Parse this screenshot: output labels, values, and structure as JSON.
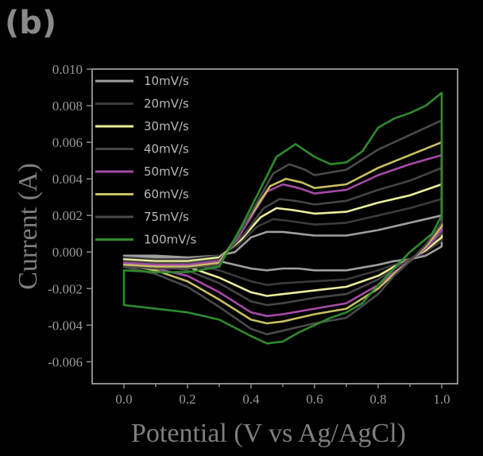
{
  "panel_label": "(b)",
  "chart_data": {
    "type": "line",
    "title": "",
    "xlabel": "Potential (V vs Ag/AgCl)",
    "ylabel": "Current (A)",
    "xlim": [
      -0.1,
      1.05
    ],
    "ylim": [
      -0.0072,
      0.01
    ],
    "xticks": [
      0.0,
      0.2,
      0.4,
      0.6,
      0.8,
      1.0
    ],
    "xtick_labels": [
      "0.0",
      "0.2",
      "0.4",
      "0.6",
      "0.8",
      "1.0"
    ],
    "yticks": [
      0.01,
      0.008,
      0.006,
      0.004,
      0.002,
      0.0,
      -0.002,
      -0.004,
      -0.006
    ],
    "ytick_labels": [
      "0.010",
      "0.008",
      "0.006",
      "0.004",
      "0.002",
      "0.000",
      "-0.002",
      "-0.004",
      "-0.006"
    ],
    "legend_position": "top-left",
    "grid": false,
    "series": [
      {
        "name": "10mV/s",
        "color": "#9e9e9e",
        "points": [
          [
            0.0,
            -0.0002
          ],
          [
            0.1,
            -0.0003
          ],
          [
            0.2,
            -0.0003
          ],
          [
            0.3,
            -0.0002
          ],
          [
            0.35,
            0.0
          ],
          [
            0.4,
            0.0008
          ],
          [
            0.45,
            0.0011
          ],
          [
            0.5,
            0.0011
          ],
          [
            0.55,
            0.001
          ],
          [
            0.6,
            0.0009
          ],
          [
            0.7,
            0.0009
          ],
          [
            0.8,
            0.0012
          ],
          [
            0.9,
            0.0016
          ],
          [
            0.95,
            0.0018
          ],
          [
            1.0,
            0.002
          ],
          [
            1.0,
            0.0003
          ],
          [
            0.95,
            -0.0002
          ],
          [
            0.9,
            -0.0004
          ],
          [
            0.85,
            -0.0005
          ],
          [
            0.8,
            -0.0007
          ],
          [
            0.7,
            -0.001
          ],
          [
            0.6,
            -0.001
          ],
          [
            0.55,
            -0.0009
          ],
          [
            0.5,
            -0.0009
          ],
          [
            0.45,
            -0.001
          ],
          [
            0.4,
            -0.0009
          ],
          [
            0.3,
            -0.0005
          ],
          [
            0.2,
            -0.0003
          ],
          [
            0.1,
            -0.0002
          ],
          [
            0.0,
            -0.0002
          ]
        ]
      },
      {
        "name": "20mV/s",
        "color": "#3a3a3a",
        "points": [
          [
            0.0,
            -0.0003
          ],
          [
            0.1,
            -0.0004
          ],
          [
            0.2,
            -0.0004
          ],
          [
            0.3,
            -0.0002
          ],
          [
            0.36,
            0.0004
          ],
          [
            0.42,
            0.0014
          ],
          [
            0.47,
            0.0018
          ],
          [
            0.52,
            0.0017
          ],
          [
            0.6,
            0.0015
          ],
          [
            0.7,
            0.0016
          ],
          [
            0.8,
            0.002
          ],
          [
            0.9,
            0.0024
          ],
          [
            1.0,
            0.0029
          ],
          [
            1.0,
            0.0006
          ],
          [
            0.95,
            0.0
          ],
          [
            0.9,
            -0.0004
          ],
          [
            0.85,
            -0.0007
          ],
          [
            0.8,
            -0.001
          ],
          [
            0.7,
            -0.0015
          ],
          [
            0.6,
            -0.0016
          ],
          [
            0.5,
            -0.0017
          ],
          [
            0.45,
            -0.0018
          ],
          [
            0.4,
            -0.0016
          ],
          [
            0.3,
            -0.001
          ],
          [
            0.2,
            -0.0006
          ],
          [
            0.1,
            -0.0004
          ],
          [
            0.0,
            -0.0003
          ]
        ]
      },
      {
        "name": "30mV/s",
        "color": "#ecec9c",
        "points": [
          [
            0.0,
            -0.0004
          ],
          [
            0.1,
            -0.0005
          ],
          [
            0.2,
            -0.0005
          ],
          [
            0.3,
            -0.0003
          ],
          [
            0.37,
            0.0007
          ],
          [
            0.43,
            0.0019
          ],
          [
            0.48,
            0.0024
          ],
          [
            0.53,
            0.0023
          ],
          [
            0.6,
            0.0021
          ],
          [
            0.7,
            0.0022
          ],
          [
            0.8,
            0.0027
          ],
          [
            0.9,
            0.0031
          ],
          [
            1.0,
            0.0037
          ],
          [
            1.0,
            0.0008
          ],
          [
            0.95,
            0.0001
          ],
          [
            0.9,
            -0.0004
          ],
          [
            0.85,
            -0.0008
          ],
          [
            0.8,
            -0.0013
          ],
          [
            0.7,
            -0.0019
          ],
          [
            0.6,
            -0.0021
          ],
          [
            0.5,
            -0.0023
          ],
          [
            0.45,
            -0.0024
          ],
          [
            0.4,
            -0.0022
          ],
          [
            0.3,
            -0.0014
          ],
          [
            0.2,
            -0.0008
          ],
          [
            0.1,
            -0.0005
          ],
          [
            0.0,
            -0.0004
          ]
        ]
      },
      {
        "name": "40mV/s",
        "color": "#454545",
        "points": [
          [
            0.0,
            -0.0005
          ],
          [
            0.1,
            -0.0006
          ],
          [
            0.2,
            -0.0006
          ],
          [
            0.3,
            -0.0004
          ],
          [
            0.38,
            0.001
          ],
          [
            0.44,
            0.0024
          ],
          [
            0.49,
            0.0029
          ],
          [
            0.54,
            0.0028
          ],
          [
            0.6,
            0.0026
          ],
          [
            0.7,
            0.0028
          ],
          [
            0.8,
            0.0034
          ],
          [
            0.9,
            0.0039
          ],
          [
            1.0,
            0.0046
          ],
          [
            1.0,
            0.001
          ],
          [
            0.95,
            0.0002
          ],
          [
            0.9,
            -0.0004
          ],
          [
            0.85,
            -0.0009
          ],
          [
            0.8,
            -0.0015
          ],
          [
            0.7,
            -0.0023
          ],
          [
            0.6,
            -0.0025
          ],
          [
            0.5,
            -0.0028
          ],
          [
            0.45,
            -0.0029
          ],
          [
            0.4,
            -0.0027
          ],
          [
            0.3,
            -0.0017
          ],
          [
            0.2,
            -0.001
          ],
          [
            0.1,
            -0.0007
          ],
          [
            0.0,
            -0.0005
          ]
        ]
      },
      {
        "name": "50mV/s",
        "color": "#a64aa6",
        "points": [
          [
            0.0,
            -0.0006
          ],
          [
            0.1,
            -0.0007
          ],
          [
            0.2,
            -0.0007
          ],
          [
            0.3,
            -0.0005
          ],
          [
            0.36,
            0.0008
          ],
          [
            0.45,
            0.0033
          ],
          [
            0.5,
            0.0037
          ],
          [
            0.55,
            0.0035
          ],
          [
            0.6,
            0.0032
          ],
          [
            0.7,
            0.0034
          ],
          [
            0.8,
            0.0042
          ],
          [
            0.9,
            0.0048
          ],
          [
            1.0,
            0.0053
          ],
          [
            1.0,
            0.0012
          ],
          [
            0.95,
            0.0002
          ],
          [
            0.9,
            -0.0005
          ],
          [
            0.85,
            -0.0011
          ],
          [
            0.8,
            -0.0018
          ],
          [
            0.7,
            -0.0028
          ],
          [
            0.6,
            -0.0031
          ],
          [
            0.5,
            -0.0034
          ],
          [
            0.45,
            -0.0035
          ],
          [
            0.4,
            -0.0033
          ],
          [
            0.3,
            -0.0022
          ],
          [
            0.2,
            -0.0013
          ],
          [
            0.1,
            -0.0009
          ],
          [
            0.0,
            -0.0006
          ]
        ]
      },
      {
        "name": "60mV/s",
        "color": "#c8c060",
        "points": [
          [
            0.0,
            -0.0007
          ],
          [
            0.1,
            -0.0008
          ],
          [
            0.2,
            -0.0008
          ],
          [
            0.3,
            -0.0006
          ],
          [
            0.36,
            0.001
          ],
          [
            0.46,
            0.0036
          ],
          [
            0.51,
            0.004
          ],
          [
            0.56,
            0.0038
          ],
          [
            0.6,
            0.0035
          ],
          [
            0.7,
            0.0037
          ],
          [
            0.8,
            0.0046
          ],
          [
            0.9,
            0.0053
          ],
          [
            1.0,
            0.006
          ],
          [
            1.0,
            0.0014
          ],
          [
            0.95,
            0.0003
          ],
          [
            0.9,
            -0.0005
          ],
          [
            0.85,
            -0.0012
          ],
          [
            0.8,
            -0.002
          ],
          [
            0.7,
            -0.0031
          ],
          [
            0.6,
            -0.0034
          ],
          [
            0.5,
            -0.0038
          ],
          [
            0.45,
            -0.0039
          ],
          [
            0.4,
            -0.0037
          ],
          [
            0.3,
            -0.0026
          ],
          [
            0.2,
            -0.0016
          ],
          [
            0.1,
            -0.001
          ],
          [
            0.0,
            -0.0007
          ]
        ]
      },
      {
        "name": "75mV/s",
        "color": "#4a4a4a",
        "points": [
          [
            0.0,
            -0.0008
          ],
          [
            0.1,
            -0.0009
          ],
          [
            0.2,
            -0.0009
          ],
          [
            0.3,
            -0.0007
          ],
          [
            0.37,
            0.0012
          ],
          [
            0.47,
            0.0043
          ],
          [
            0.52,
            0.0048
          ],
          [
            0.57,
            0.0045
          ],
          [
            0.6,
            0.0042
          ],
          [
            0.7,
            0.0045
          ],
          [
            0.8,
            0.0056
          ],
          [
            0.9,
            0.0064
          ],
          [
            1.0,
            0.0072
          ],
          [
            1.0,
            0.0016
          ],
          [
            0.95,
            0.0004
          ],
          [
            0.9,
            -0.0005
          ],
          [
            0.85,
            -0.0013
          ],
          [
            0.8,
            -0.0023
          ],
          [
            0.7,
            -0.0036
          ],
          [
            0.6,
            -0.0039
          ],
          [
            0.5,
            -0.0043
          ],
          [
            0.45,
            -0.0045
          ],
          [
            0.4,
            -0.0042
          ],
          [
            0.3,
            -0.003
          ],
          [
            0.2,
            -0.0019
          ],
          [
            0.1,
            -0.0012
          ],
          [
            0.0,
            -0.0008
          ]
        ]
      },
      {
        "name": "100mV/s",
        "color": "#2f8a2f",
        "points": [
          [
            0.0,
            -0.001
          ],
          [
            0.1,
            -0.0011
          ],
          [
            0.2,
            -0.0011
          ],
          [
            0.3,
            -0.0008
          ],
          [
            0.37,
            0.0014
          ],
          [
            0.48,
            0.0052
          ],
          [
            0.54,
            0.0059
          ],
          [
            0.6,
            0.0052
          ],
          [
            0.65,
            0.0048
          ],
          [
            0.7,
            0.0049
          ],
          [
            0.75,
            0.0055
          ],
          [
            0.8,
            0.0068
          ],
          [
            0.85,
            0.0073
          ],
          [
            0.9,
            0.0076
          ],
          [
            0.95,
            0.008
          ],
          [
            1.0,
            0.0087
          ],
          [
            1.0,
            0.002
          ],
          [
            0.97,
            0.001
          ],
          [
            0.9,
            0.0
          ],
          [
            0.85,
            -0.0009
          ],
          [
            0.8,
            -0.0018
          ],
          [
            0.75,
            -0.0028
          ],
          [
            0.7,
            -0.0033
          ],
          [
            0.65,
            -0.0036
          ],
          [
            0.6,
            -0.004
          ],
          [
            0.55,
            -0.0044
          ],
          [
            0.5,
            -0.0049
          ],
          [
            0.45,
            -0.005
          ],
          [
            0.4,
            -0.0046
          ],
          [
            0.3,
            -0.0037
          ],
          [
            0.2,
            -0.0033
          ],
          [
            0.1,
            -0.0031
          ],
          [
            0.0,
            -0.0029
          ]
        ]
      }
    ]
  }
}
